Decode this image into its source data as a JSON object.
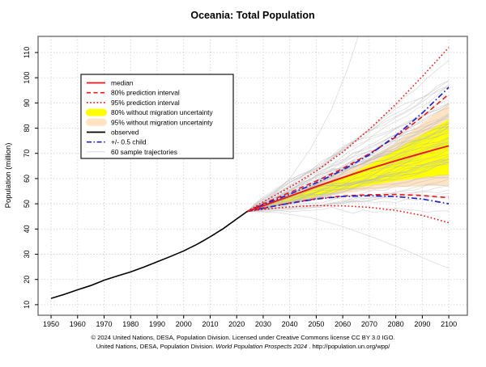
{
  "title": "Oceania: Total Population",
  "y_axis_label": "Population (million)",
  "footer": {
    "line1": "© 2024 United Nations, DESA, Population Division. Licensed under Creative Commons license CC BY 3.0 IGO.",
    "line2_prefix": "United Nations, DESA, Population Division. ",
    "line2_italic": "World Population Prospects 2024",
    "line2_suffix": " . http://population.un.org/wpp/"
  },
  "colors": {
    "median_red": "#ee1515",
    "child_blue": "#2222cc",
    "observed_black": "#000000",
    "band_80": "#ffff00",
    "band_95": "#ffe4c4",
    "trajectory_gray": "#b9b9b9",
    "grid_gray": "#c9c9c9",
    "frame_gray": "#666666"
  },
  "legend": {
    "items": [
      {
        "label": "median",
        "style": "solid",
        "color": "#ee1515"
      },
      {
        "label": "80% prediction interval",
        "style": "dashed",
        "color": "#ee1515"
      },
      {
        "label": "95% prediction interval",
        "style": "dotted",
        "color": "#ee1515"
      },
      {
        "label": "80% without migration uncertainty",
        "style": "band",
        "color": "#ffff00"
      },
      {
        "label": "95% without migration uncertainty",
        "style": "band",
        "color": "#ffe4c4"
      },
      {
        "label": "observed",
        "style": "solid",
        "color": "#000000"
      },
      {
        "label": "+/- 0.5 child",
        "style": "dashdot",
        "color": "#2222cc"
      },
      {
        "label": "60 sample trajectories",
        "style": "thin",
        "color": "#c0c0c0"
      }
    ]
  },
  "chart_data": {
    "type": "line",
    "title": "Oceania: Total Population",
    "xlabel": "",
    "ylabel": "Population (million)",
    "x_ticks": [
      1950,
      1960,
      1970,
      1980,
      1990,
      2000,
      2010,
      2020,
      2030,
      2040,
      2050,
      2060,
      2070,
      2080,
      2090,
      2100
    ],
    "y_ticks": [
      10,
      20,
      30,
      40,
      50,
      60,
      70,
      80,
      90,
      100,
      110
    ],
    "xlim": [
      1945.1,
      2107.0
    ],
    "ylim": [
      5.8,
      116.4
    ],
    "grid": true,
    "legend_position": "upper-left",
    "observed": {
      "years": [
        1950,
        1955,
        1960,
        1965,
        1970,
        1975,
        1980,
        1985,
        1990,
        1995,
        2000,
        2005,
        2010,
        2015,
        2020,
        2024
      ],
      "values": [
        12.5,
        14.1,
        15.9,
        17.6,
        19.7,
        21.4,
        23.0,
        24.9,
        27.0,
        29.1,
        31.3,
        33.9,
        36.9,
        40.2,
        44.0,
        47.0
      ]
    },
    "projection": {
      "years": [
        2024,
        2030,
        2040,
        2050,
        2060,
        2070,
        2080,
        2090,
        2100
      ],
      "median": [
        47,
        49.2,
        53.0,
        56.8,
        60.4,
        63.9,
        67.1,
        70.1,
        73.0
      ],
      "pi80_upper": [
        47,
        50.0,
        54.5,
        59.0,
        64.0,
        69.8,
        76.5,
        84.5,
        93.5
      ],
      "pi80_lower": [
        47,
        48.2,
        50.3,
        52.0,
        53.1,
        53.6,
        53.7,
        53.3,
        52.4
      ],
      "pi95_upper": [
        47,
        50.8,
        56.5,
        63.0,
        70.5,
        79.5,
        89.5,
        100.5,
        112.0
      ],
      "pi95_lower": [
        47,
        47.8,
        48.8,
        49.3,
        49.2,
        48.6,
        47.4,
        45.4,
        42.5
      ],
      "child_plus": [
        47,
        49.7,
        53.8,
        58.3,
        63.4,
        69.4,
        77.0,
        86.0,
        96.2
      ],
      "child_minus": [
        47,
        48.3,
        50.2,
        51.9,
        52.9,
        53.2,
        52.9,
        51.9,
        50.0
      ],
      "nomig80_upper": [
        47,
        49.4,
        52.8,
        56.4,
        60.5,
        65.5,
        71.3,
        77.5,
        83.5
      ],
      "nomig80_lower": [
        47,
        48.6,
        50.8,
        53.0,
        55.3,
        57.3,
        59.0,
        60.4,
        61.5
      ],
      "nomig95_upper": [
        47,
        49.8,
        53.6,
        57.8,
        62.5,
        68.0,
        74.3,
        82.0,
        89.5
      ],
      "nomig95_lower": [
        47,
        48.3,
        50.2,
        52.2,
        54.0,
        55.5,
        56.5,
        57.0,
        57.2
      ]
    },
    "sample_trajectories": {
      "count": 60,
      "seed": 11,
      "start_year": 2024,
      "start_value": 47,
      "end_value_range": [
        38,
        108
      ],
      "special": [
        {
          "name": "high-spike",
          "years": [
            2024,
            2032,
            2040,
            2048,
            2056,
            2062,
            2066
          ],
          "values": [
            47,
            52,
            60,
            72,
            88,
            104,
            117
          ]
        },
        {
          "name": "low-decline",
          "years": [
            2024,
            2036,
            2048,
            2060,
            2072,
            2084,
            2096,
            2100
          ],
          "values": [
            47,
            46.5,
            44.5,
            41,
            36.5,
            31.5,
            26,
            24.5
          ]
        }
      ]
    }
  }
}
